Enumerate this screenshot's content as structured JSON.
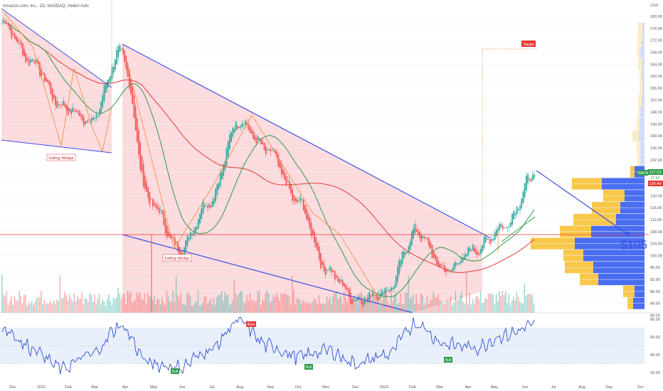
{
  "header": {
    "symbol_line": "Amazon.com, Inc., 1D, NASDAQ, Heikin Ashi"
  },
  "price_axis": {
    "currency": "USD",
    "ticks": [
      "180.00",
      "176.00",
      "172.00",
      "168.00",
      "164.00",
      "160.00",
      "156.00",
      "152.00",
      "148.00",
      "144.00",
      "140.00",
      "136.00",
      "132.00",
      "128.00",
      "124.00",
      "120.00",
      "116.00",
      "112.00",
      "108.00",
      "104.00",
      "100.00",
      "96.00",
      "92.00",
      "88.00",
      "84.00",
      "80.00"
    ],
    "last_price_badge": "127.03",
    "last_price_badge2": "126.40",
    "badge_sub": "27.42",
    "ticker_badge": "AMZN"
  },
  "rsi_axis": {
    "ticks": [
      "80.00",
      "60.00",
      "40.00",
      "20.00"
    ]
  },
  "time_axis": {
    "labels": [
      "Dec",
      "2022",
      "Feb",
      "Mar",
      "Apr",
      "May",
      "Jun",
      "Jul",
      "Aug",
      "Sep",
      "Oct",
      "Nov",
      "Dec",
      "2023",
      "Feb",
      "Mar",
      "Apr",
      "May",
      "Jun",
      "Jul",
      "Aug",
      "Sep",
      "Oct"
    ]
  },
  "annotations": {
    "falling_wedge_1": "Falling Wedge",
    "falling_wedge_2": "Falling Wedge",
    "target": "Target",
    "price_target": "$105",
    "bear_label": "Bear",
    "bull_label_1": "Bull",
    "bull_label_2": "Bull",
    "bull_label_3": "Bull"
  },
  "colors": {
    "up": "#26a69a",
    "down": "#ef5350",
    "trendline": "#3c50e0",
    "ma_red": "#e53935",
    "ma_green": "#2e9a4a",
    "wedge_fill": "#fbd5d8",
    "rsi_line": "#2f4fd0",
    "rsi_band": "#e3ecfb",
    "vp_yellow": "#f9c84a",
    "vp_blue": "#4a6ef2",
    "support_line": "#e53935"
  },
  "chart_data": {
    "type": "candlestick",
    "title": "Amazon.com, Inc., 1D, NASDAQ, Heikin Ashi",
    "unit": "USD",
    "ylim": [
      80,
      182
    ],
    "x": [
      "Dec 2021",
      "Jan 2022",
      "Feb",
      "Mar",
      "Apr",
      "May",
      "Jun",
      "Jul",
      "Aug",
      "Sep",
      "Oct",
      "Nov",
      "Dec",
      "Jan 2023",
      "Feb",
      "Mar",
      "Apr",
      "May",
      "Jun"
    ],
    "close_approx": [
      178,
      165,
      150,
      145,
      168,
      118,
      102,
      118,
      145,
      135,
      118,
      95,
      85,
      88,
      108,
      95,
      102,
      110,
      127
    ],
    "support_level": 106,
    "target_level": 169,
    "projected_target": 105,
    "last_price": 127.03,
    "patterns": [
      "Falling Wedge",
      "Falling Wedge"
    ],
    "rsi": {
      "ylim": [
        20,
        80
      ],
      "values_approx": [
        70,
        48,
        25,
        40,
        72,
        30,
        26,
        45,
        78,
        50,
        38,
        45,
        30,
        40,
        75,
        52,
        48,
        62,
        73
      ]
    }
  }
}
